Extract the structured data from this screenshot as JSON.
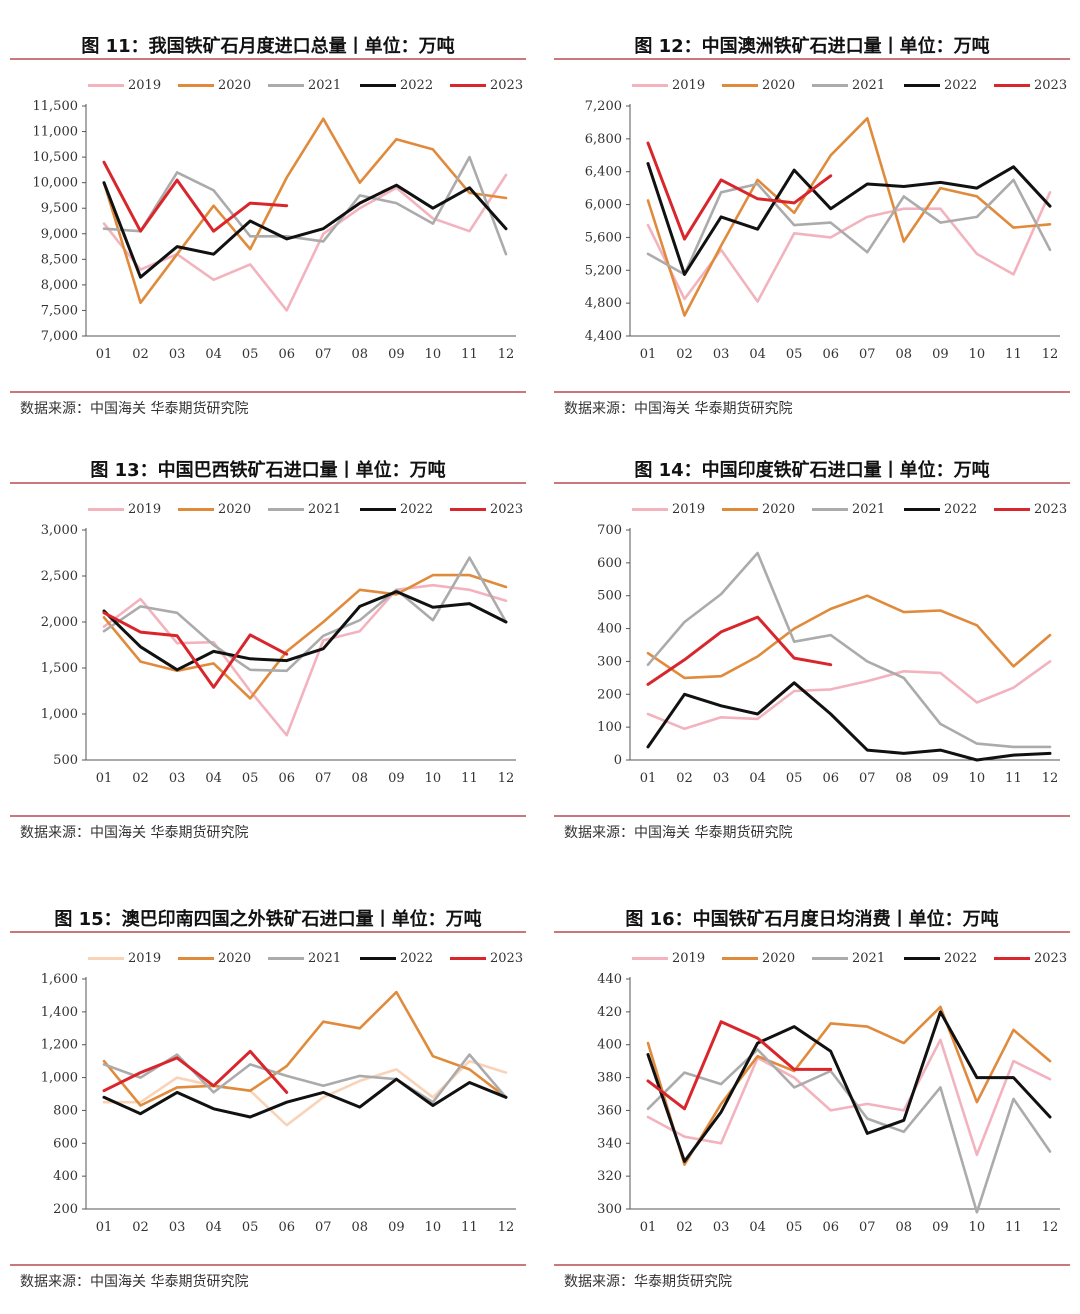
{
  "colors": {
    "2019": "#f3b3be",
    "2020": "#e08a3c",
    "2021": "#ababab",
    "2022": "#111111",
    "2023": "#d8262c",
    "rule": "#c9777b"
  },
  "chart_data": [
    {
      "id": "fig11",
      "type": "line",
      "title": "图 11：我国铁矿石月度进口总量丨单位：万吨",
      "source": "数据来源：中国海关 华泰期货研究院",
      "categories": [
        "01",
        "02",
        "03",
        "04",
        "05",
        "06",
        "07",
        "08",
        "09",
        "10",
        "11",
        "12"
      ],
      "ylim": [
        7000,
        11500
      ],
      "yticks": [
        "7,000",
        "7,500",
        "8,000",
        "8,500",
        "9,000",
        "9,500",
        "10,000",
        "10,500",
        "11,000",
        "11,500"
      ],
      "series": [
        {
          "name": "2019",
          "color": "#f3b3be",
          "values": [
            9200,
            8300,
            8600,
            8100,
            8400,
            7500,
            9000,
            9500,
            9900,
            9300,
            9050,
            10150
          ]
        },
        {
          "name": "2020",
          "color": "#e08a3c",
          "values": [
            10000,
            7650,
            8600,
            9550,
            8700,
            10100,
            11250,
            10000,
            10850,
            10650,
            9800,
            9700
          ]
        },
        {
          "name": "2021",
          "color": "#ababab",
          "values": [
            9100,
            9050,
            10200,
            9850,
            8950,
            8950,
            8850,
            9750,
            9600,
            9200,
            10500,
            8600
          ]
        },
        {
          "name": "2022",
          "color": "#111111",
          "values": [
            10000,
            8150,
            8750,
            8600,
            9250,
            8900,
            9100,
            9600,
            9950,
            9500,
            9900,
            9100
          ]
        },
        {
          "name": "2023",
          "color": "#d8262c",
          "values": [
            10400,
            9050,
            10050,
            9050,
            9600,
            9550,
            null,
            null,
            null,
            null,
            null,
            null
          ]
        }
      ]
    },
    {
      "id": "fig12",
      "type": "line",
      "title": "图 12：中国澳洲铁矿石进口量丨单位：万吨",
      "source": "数据来源：中国海关 华泰期货研究院",
      "categories": [
        "01",
        "02",
        "03",
        "04",
        "05",
        "06",
        "07",
        "08",
        "09",
        "10",
        "11",
        "12"
      ],
      "ylim": [
        4400,
        7200
      ],
      "yticks": [
        "4,400",
        "4,800",
        "5,200",
        "5,600",
        "6,000",
        "6,400",
        "6,800",
        "7,200"
      ],
      "series": [
        {
          "name": "2019",
          "color": "#f3b3be",
          "values": [
            5750,
            4850,
            5450,
            4820,
            5650,
            5600,
            5850,
            5950,
            5950,
            5400,
            5150,
            6150
          ]
        },
        {
          "name": "2020",
          "color": "#e08a3c",
          "values": [
            6050,
            4650,
            5500,
            6300,
            5900,
            6600,
            7050,
            5550,
            6200,
            6100,
            5720,
            5760
          ]
        },
        {
          "name": "2021",
          "color": "#ababab",
          "values": [
            5400,
            5150,
            6150,
            6250,
            5750,
            5780,
            5420,
            6100,
            5780,
            5850,
            6300,
            5450
          ]
        },
        {
          "name": "2022",
          "color": "#111111",
          "values": [
            6500,
            5150,
            5850,
            5700,
            6420,
            5950,
            6250,
            6220,
            6270,
            6200,
            6460,
            5980
          ]
        },
        {
          "name": "2023",
          "color": "#d8262c",
          "values": [
            6750,
            5580,
            6300,
            6070,
            6020,
            6350,
            null,
            null,
            null,
            null,
            null,
            null
          ]
        }
      ]
    },
    {
      "id": "fig13",
      "type": "line",
      "title": "图 13：中国巴西铁矿石进口量丨单位：万吨",
      "source": "数据来源：中国海关 华泰期货研究院",
      "categories": [
        "01",
        "02",
        "03",
        "04",
        "05",
        "06",
        "07",
        "08",
        "09",
        "10",
        "11",
        "12"
      ],
      "ylim": [
        500,
        3000
      ],
      "yticks": [
        "500",
        "1,000",
        "1,500",
        "2,000",
        "2,500",
        "3,000"
      ],
      "series": [
        {
          "name": "2019",
          "color": "#f3b3be",
          "values": [
            1950,
            2250,
            1770,
            1780,
            1250,
            770,
            1800,
            1900,
            2350,
            2400,
            2350,
            2230
          ]
        },
        {
          "name": "2020",
          "color": "#e08a3c",
          "values": [
            2050,
            1570,
            1470,
            1550,
            1170,
            1680,
            2000,
            2350,
            2300,
            2510,
            2510,
            2380
          ]
        },
        {
          "name": "2021",
          "color": "#ababab",
          "values": [
            1900,
            2170,
            2100,
            1750,
            1480,
            1470,
            1850,
            2020,
            2350,
            2020,
            2700,
            2000
          ]
        },
        {
          "name": "2022",
          "color": "#111111",
          "values": [
            2120,
            1730,
            1480,
            1680,
            1600,
            1580,
            1710,
            2170,
            2330,
            2160,
            2200,
            2000
          ]
        },
        {
          "name": "2023",
          "color": "#d8262c",
          "values": [
            2100,
            1890,
            1850,
            1290,
            1860,
            1650,
            null,
            null,
            null,
            null,
            null,
            null
          ]
        }
      ]
    },
    {
      "id": "fig14",
      "type": "line",
      "title": "图 14：中国印度铁矿石进口量丨单位：万吨",
      "source": "数据来源：中国海关 华泰期货研究院",
      "categories": [
        "01",
        "02",
        "03",
        "04",
        "05",
        "06",
        "07",
        "08",
        "09",
        "10",
        "11",
        "12"
      ],
      "ylim": [
        0,
        700
      ],
      "yticks": [
        "0",
        "100",
        "200",
        "300",
        "400",
        "500",
        "600",
        "700"
      ],
      "series": [
        {
          "name": "2019",
          "color": "#f3b3be",
          "values": [
            140,
            95,
            130,
            125,
            210,
            215,
            240,
            270,
            265,
            175,
            220,
            300
          ]
        },
        {
          "name": "2020",
          "color": "#e08a3c",
          "values": [
            325,
            250,
            255,
            315,
            400,
            460,
            500,
            450,
            455,
            410,
            285,
            380
          ]
        },
        {
          "name": "2021",
          "color": "#ababab",
          "values": [
            290,
            420,
            505,
            630,
            360,
            380,
            300,
            250,
            110,
            50,
            40,
            40
          ]
        },
        {
          "name": "2022",
          "color": "#111111",
          "values": [
            40,
            200,
            165,
            140,
            235,
            140,
            30,
            20,
            30,
            0,
            15,
            20
          ]
        },
        {
          "name": "2023",
          "color": "#d8262c",
          "values": [
            230,
            305,
            390,
            435,
            310,
            290,
            null,
            null,
            null,
            null,
            null,
            null
          ]
        }
      ]
    },
    {
      "id": "fig15",
      "type": "line",
      "title": "图 15：澳巴印南四国之外铁矿石进口量丨单位：万吨",
      "source": "数据来源：中国海关 华泰期货研究院",
      "categories": [
        "01",
        "02",
        "03",
        "04",
        "05",
        "06",
        "07",
        "08",
        "09",
        "10",
        "11",
        "12"
      ],
      "ylim": [
        200,
        1600
      ],
      "yticks": [
        "200",
        "400",
        "600",
        "800",
        "1,000",
        "1,200",
        "1,400",
        "1,600"
      ],
      "series": [
        {
          "name": "2019",
          "color": "#f9d3b8",
          "values": [
            850,
            850,
            1000,
            950,
            920,
            710,
            880,
            980,
            1050,
            880,
            1100,
            1030
          ]
        },
        {
          "name": "2020",
          "color": "#e08a3c",
          "values": [
            1100,
            830,
            940,
            950,
            920,
            1070,
            1340,
            1300,
            1520,
            1130,
            1050,
            880
          ]
        },
        {
          "name": "2021",
          "color": "#ababab",
          "values": [
            1080,
            1000,
            1140,
            910,
            1080,
            1010,
            950,
            1010,
            990,
            850,
            1140,
            880
          ]
        },
        {
          "name": "2022",
          "color": "#111111",
          "values": [
            880,
            780,
            910,
            810,
            760,
            850,
            910,
            820,
            990,
            830,
            970,
            880
          ]
        },
        {
          "name": "2023",
          "color": "#d8262c",
          "values": [
            920,
            1030,
            1120,
            950,
            1160,
            910,
            null,
            null,
            null,
            null,
            null,
            null
          ]
        }
      ]
    },
    {
      "id": "fig16",
      "type": "line",
      "title": "图 16：中国铁矿石月度日均消费丨单位：万吨",
      "source": "数据来源：华泰期货研究院",
      "categories": [
        "01",
        "02",
        "03",
        "04",
        "05",
        "06",
        "07",
        "08",
        "09",
        "10",
        "11",
        "12"
      ],
      "ylim": [
        300,
        440
      ],
      "yticks": [
        "300",
        "320",
        "340",
        "360",
        "380",
        "400",
        "420",
        "440"
      ],
      "series": [
        {
          "name": "2019",
          "color": "#f3b3be",
          "values": [
            356,
            344,
            340,
            392,
            380,
            360,
            364,
            360,
            403,
            333,
            390,
            379
          ]
        },
        {
          "name": "2020",
          "color": "#e08a3c",
          "values": [
            401,
            327,
            364,
            393,
            384,
            413,
            411,
            401,
            423,
            365,
            409,
            390
          ]
        },
        {
          "name": "2021",
          "color": "#ababab",
          "values": [
            361,
            383,
            376,
            397,
            374,
            384,
            355,
            347,
            374,
            298,
            367,
            335
          ]
        },
        {
          "name": "2022",
          "color": "#111111",
          "values": [
            394,
            329,
            359,
            401,
            411,
            396,
            346,
            354,
            420,
            380,
            380,
            356
          ]
        },
        {
          "name": "2023",
          "color": "#d8262c",
          "values": [
            378,
            361,
            414,
            404,
            385,
            385,
            null,
            null,
            null,
            null,
            null,
            null
          ]
        }
      ]
    }
  ]
}
